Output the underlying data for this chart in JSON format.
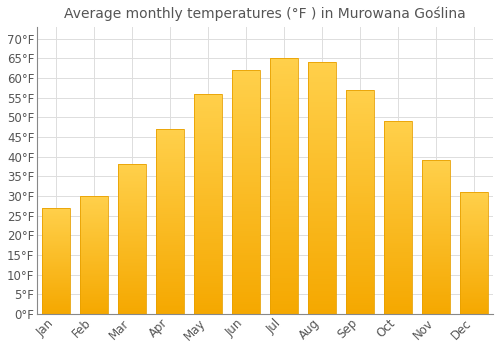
{
  "title": "Average monthly temperatures (°F ) in Murowana Goślina",
  "months": [
    "Jan",
    "Feb",
    "Mar",
    "Apr",
    "May",
    "Jun",
    "Jul",
    "Aug",
    "Sep",
    "Oct",
    "Nov",
    "Dec"
  ],
  "values": [
    27,
    30,
    38,
    47,
    56,
    62,
    65,
    64,
    57,
    49,
    39,
    31
  ],
  "bar_color_top": "#FFD04B",
  "bar_color_bottom": "#F5A800",
  "bar_edge_color": "#E8A000",
  "background_color": "#FFFFFF",
  "grid_color": "#DDDDDD",
  "text_color": "#555555",
  "yticks": [
    0,
    5,
    10,
    15,
    20,
    25,
    30,
    35,
    40,
    45,
    50,
    55,
    60,
    65,
    70
  ],
  "ylim": [
    0,
    73
  ],
  "title_fontsize": 10,
  "tick_fontsize": 8.5,
  "bar_width": 0.75
}
